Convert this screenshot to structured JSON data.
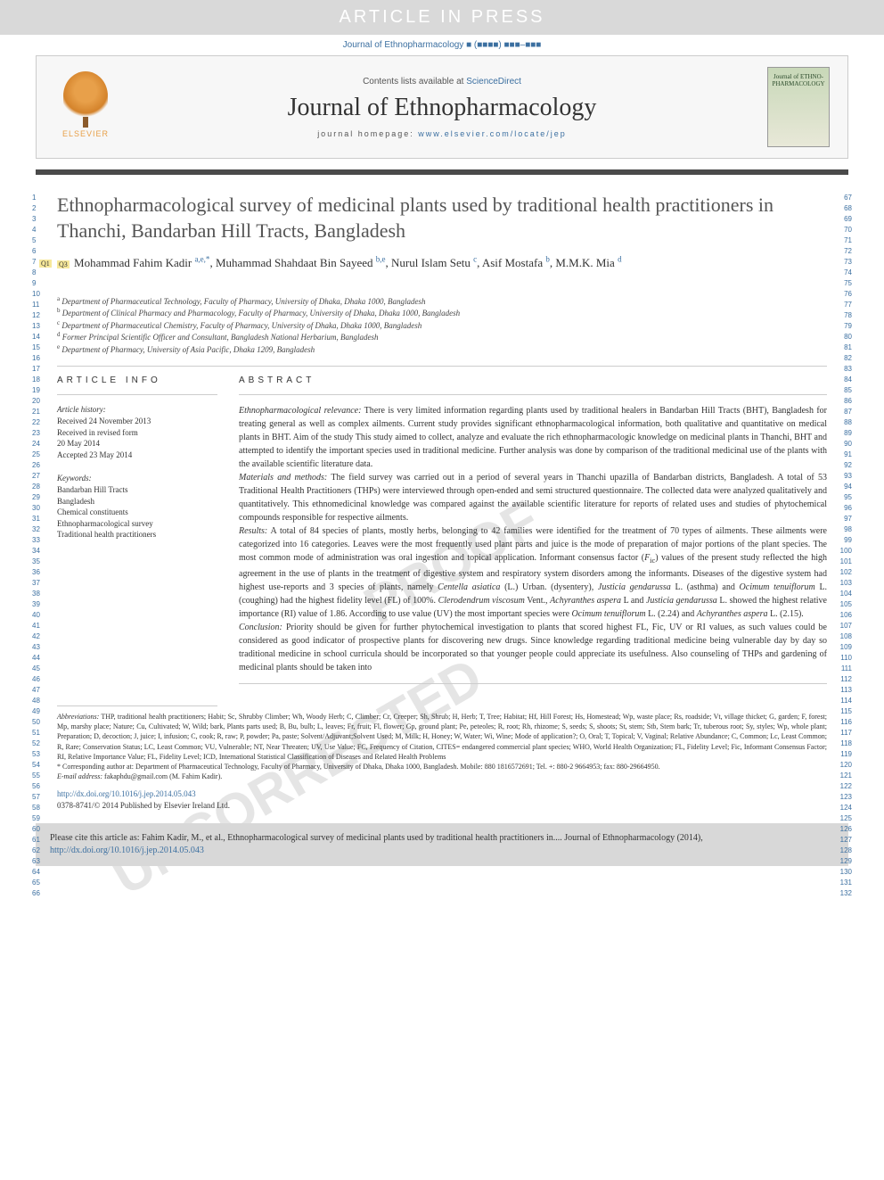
{
  "banner": "ARTICLE IN PRESS",
  "journal_ref": "Journal of Ethnopharmacology ■ (■■■■) ■■■–■■■",
  "header": {
    "elsevier": "ELSEVIER",
    "contents_prefix": "Contents lists available at ",
    "contents_link": "ScienceDirect",
    "journal_title": "Journal of Ethnopharmacology",
    "homepage_prefix": "journal homepage: ",
    "homepage_link": "www.elsevier.com/locate/jep",
    "cover_text": "Journal of ETHNO-PHARMACOLOGY"
  },
  "title": "Ethnopharmacological survey of medicinal plants used by traditional health practitioners in Thanchi, Bandarban Hill Tracts, Bangladesh",
  "authors_html": "Mohammad Fahim Kadir <sup>a,e,*</sup>, Muhammad Shahdaat Bin Sayeed <sup>b,e</sup>, Nurul Islam Setu <sup>c</sup>, Asif Mostafa <sup>b</sup>, M.M.K. Mia <sup>d</sup>",
  "q_markers": [
    "Q3",
    "Q1"
  ],
  "affiliations": [
    "a Department of Pharmaceutical Technology, Faculty of Pharmacy, University of Dhaka, Dhaka 1000, Bangladesh",
    "b Department of Clinical Pharmacy and Pharmacology, Faculty of Pharmacy, University of Dhaka, Dhaka 1000, Bangladesh",
    "c Department of Pharmaceutical Chemistry, Faculty of Pharmacy, University of Dhaka, Dhaka 1000, Bangladesh",
    "d Former Principal Scientific Officer and Consultant, Bangladesh National Herbarium, Bangladesh",
    "e Department of Pharmacy, University of Asia Pacific, Dhaka 1209, Bangladesh"
  ],
  "article_info": {
    "heading": "ARTICLE INFO",
    "history_label": "Article history:",
    "history": [
      "Received 24 November 2013",
      "Received in revised form",
      "20 May 2014",
      "Accepted 23 May 2014"
    ],
    "keywords_label": "Keywords:",
    "keywords": [
      "Bandarban Hill Tracts",
      "Bangladesh",
      "Chemical constituents",
      "Ethnopharmacological survey",
      "Traditional health practitioners"
    ]
  },
  "abstract": {
    "heading": "ABSTRACT",
    "relevance_label": "Ethnopharmacological relevance:",
    "relevance": " There is very limited information regarding plants used by traditional healers in Bandarban Hill Tracts (BHT), Bangladesh for treating general as well as complex ailments. Current study provides significant ethnopharmacological information, both qualitative and quantitative on medical plants in BHT. Aim of the study This study aimed to collect, analyze and evaluate the rich ethnopharmacologic knowledge on medicinal plants in Thanchi, BHT and attempted to identify the important species used in traditional medicine. Further analysis was done by comparison of the traditional medicinal use of the plants with the available scientific literature data.",
    "methods_label": "Materials and methods:",
    "methods": " The field survey was carried out in a period of several years in Thanchi upazilla of Bandarban districts, Bangladesh. A total of 53 Traditional Health Practitioners (THPs) were interviewed through open-ended and semi structured questionnaire. The collected data were analyzed qualitatively and quantitatively. This ethnomedicinal knowledge was compared against the available scientific literature for reports of related uses and studies of phytochemical compounds responsible for respective ailments.",
    "results_label": "Results:",
    "results": " A total of 84 species of plants, mostly herbs, belonging to 42 families were identified for the treatment of 70 types of ailments. These ailments were categorized into 16 categories. Leaves were the most frequently used plant parts and juice is the mode of preparation of major portions of the plant species. The most common mode of administration was oral ingestion and topical application. Informant consensus factor (Fic) values of the present study reflected the high agreement in the use of plants in the treatment of digestive system and respiratory system disorders among the informants. Diseases of the digestive system had highest use-reports and 3 species of plants, namely Centella asiatica (L.) Urban. (dysentery), Justicia gendarussa L. (asthma) and Ocimum tenuiflorum L. (coughing) had the highest fidelity level (FL) of 100%. Clerodendrum viscosum Vent., Achyranthes aspera L and Justicia gendarussa L. showed the highest relative importance (RI) value of 1.86. According to use value (UV) the most important species were Ocimum tenuiflorum L. (2.24) and Achyranthes aspera L. (2.15).",
    "conclusion_label": "Conclusion:",
    "conclusion": " Priority should be given for further phytochemical investigation to plants that scored highest FL, Fic, UV or RI values, as such values could be considered as good indicator of prospective plants for discovering new drugs. Since knowledge regarding traditional medicine being vulnerable day by day so traditional medicine in school curricula should be incorporated so that younger people could appreciate its usefulness. Also counseling of THPs and gardening of medicinal plants should be taken into"
  },
  "footnotes": {
    "abbrev_label": "Abbreviations:",
    "abbrev": " THP, traditional health practitioners; Habit; Sc, Shrubby Climber; Wh, Woody Herb; C, Climber; Cr, Creeper; Sh, Shrub; H, Herb; T, Tree; Habitat; Hf, Hill Forest; Hs, Homestead; Wp, waste place; Rs, roadside; Vt, village thicket; G, garden; F, forest; Mp, marshy place; Nature; Cu, Cultivated; W, Wild; bark, Plants parts used; B, Bu, bulb; L, leaves; Fr, fruit; Fl, flower; Gp, ground plant; Pe, peteoles; R, root; Rh, rhizome; S, seeds; S, shoots; St, stem; Stb, Stem bark; Tr, tuberous root; Sy, styles; Wp, whole plant; Preparation; D, decoction; J, juice; I, infusion; C, cook; R, raw; P, powder; Pa, paste; Solvent/Adjuvant;Solvent Used; M, Milk; H, Honey; W, Water; Wi, Wine; Mode of application?; O, Oral; T, Topical; V, Vaginal; Relative Abundance; C, Common; Lc, Least Common; R, Rare; Conservation Status; LC, Least Common; VU, Vulnerable; NT, Near Threaten; UV, Use Value; FC, Frequency of Citation, CITES= endangered commercial plant species; WHO, World Health Organization; FL, Fidelity Level; Fic, Informant Consensus Factor; RI, Relative Importance Value; FL, Fidelity Level; ICD, International Statistical Classification of Diseases and Related Health Problems",
    "corresponding": "* Corresponding author at: Department of Pharmaceutical Technology, Faculty of Pharmacy, University of Dhaka, Dhaka 1000, Bangladesh. Mobile: 880 1816572691; Tel. +: 880-2 9664953; fax: 880-29664950.",
    "email_label": "E-mail address:",
    "email": " fakaphdu@gmail.com (M. Fahim Kadir).",
    "doi": "http://dx.doi.org/10.1016/j.jep.2014.05.043",
    "copyright": "0378-8741/© 2014 Published by Elsevier Ireland Ltd."
  },
  "cite_box": {
    "prefix": "Please cite this article as: Fahim Kadir, M., et al., Ethnopharmacological survey of medicinal plants used by traditional health practitioners in.... Journal of Ethnopharmacology (2014), ",
    "link": "http://dx.doi.org/10.1016/j.jep.2014.05.043"
  },
  "line_numbers": {
    "left_start": 1,
    "left_end": 66,
    "right_start": 67,
    "right_end": 132
  },
  "colors": {
    "link": "#3b6fa0",
    "banner_bg": "#d9d9d9",
    "divider": "#4a4a4a"
  }
}
